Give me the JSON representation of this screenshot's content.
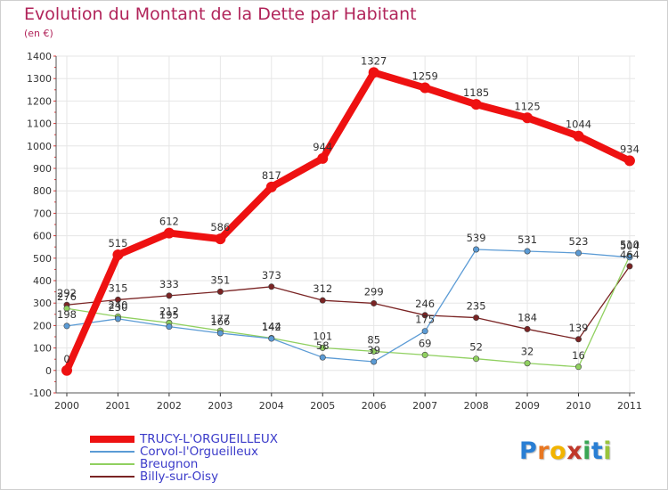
{
  "header": {
    "title": "Evolution du Montant de la Dette par Habitant",
    "subtitle": "(en €)"
  },
  "logo": {
    "letters": [
      "P",
      "r",
      "o",
      "x",
      "i",
      "t",
      "i"
    ],
    "colors": [
      "#2a7fd4",
      "#e87722",
      "#f2b400",
      "#c0392b",
      "#3aa655",
      "#2a7fd4",
      "#9ac43c"
    ]
  },
  "chart_data": {
    "type": "line",
    "x": [
      "2000",
      "2001",
      "2002",
      "2003",
      "2004",
      "2005",
      "2006",
      "2007",
      "2008",
      "2009",
      "2010",
      "2011"
    ],
    "ylim": [
      -100,
      1400
    ],
    "yticks": [
      -100,
      0,
      100,
      200,
      300,
      400,
      500,
      600,
      700,
      800,
      900,
      1000,
      1100,
      1200,
      1300,
      1400
    ],
    "grid": true,
    "legend_position": "bottom-left",
    "series": [
      {
        "name": "TRUCY-L'ORGUEILLEUX",
        "color": "#ee1111",
        "values": [
          0,
          515,
          612,
          586,
          817,
          944,
          1327,
          1259,
          1185,
          1125,
          1044,
          934
        ],
        "labels": [
          "0",
          "515",
          "612",
          "586",
          "817",
          "944",
          "1327",
          "1259",
          "1185",
          "1125",
          "1044",
          "934"
        ]
      },
      {
        "name": "Corvol-l'Orgueilleux",
        "color": "#5b9bd5",
        "values": [
          198,
          230,
          195,
          166,
          142,
          58,
          39,
          175,
          539,
          531,
          523,
          504
        ],
        "labels": [
          "198",
          "230",
          "195",
          "166",
          "142",
          "58",
          "39",
          "175",
          "539",
          "531",
          "523",
          "504"
        ]
      },
      {
        "name": "Breugnon",
        "color": "#90d060",
        "values": [
          276,
          240,
          212,
          177,
          144,
          101,
          85,
          69,
          52,
          32,
          16,
          510
        ],
        "labels": [
          "276",
          "240",
          "212",
          "177",
          "144",
          "101",
          "85",
          "69",
          "52",
          "32",
          "16",
          "510"
        ]
      },
      {
        "name": "Billy-sur-Oisy",
        "color": "#7a2424",
        "values": [
          292,
          315,
          333,
          351,
          373,
          312,
          299,
          246,
          235,
          184,
          139,
          464
        ],
        "labels": [
          "292",
          "315",
          "333",
          "351",
          "373",
          "312",
          "299",
          "246",
          "235",
          "184",
          "139",
          "464"
        ]
      }
    ]
  }
}
